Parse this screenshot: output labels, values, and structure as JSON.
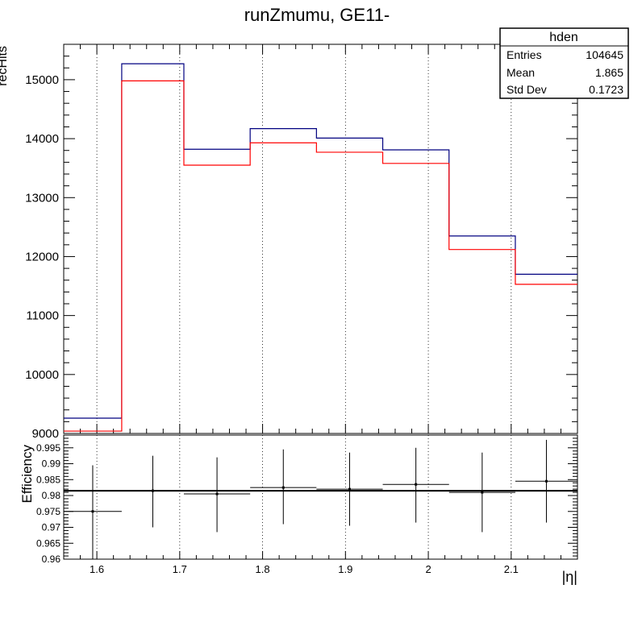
{
  "title": "runZmumu, GE11-",
  "chart_data": [
    {
      "type": "step",
      "ylabel": "recHits",
      "xlim": [
        1.56,
        2.18
      ],
      "ylim": [
        9000,
        15600
      ],
      "x_ticks": [
        1.6,
        1.7,
        1.8,
        1.9,
        2.0,
        2.1
      ],
      "y_ticks": [
        9000,
        10000,
        11000,
        12000,
        13000,
        14000,
        15000
      ],
      "y_tick_labels": [
        "9000",
        "10000",
        "11000",
        "12000",
        "13000",
        "14000",
        "15000"
      ],
      "grid_x": true,
      "bin_edges": [
        1.56,
        1.63,
        1.705,
        1.785,
        1.865,
        1.945,
        2.025,
        2.105,
        2.18
      ],
      "series": [
        {
          "color": "#000080",
          "values": [
            9260,
            15270,
            13820,
            14170,
            14010,
            13810,
            12350,
            11700
          ]
        },
        {
          "color": "#ff0000",
          "values": [
            9040,
            14980,
            13550,
            13930,
            13770,
            13580,
            12120,
            11530
          ]
        }
      ],
      "stats_box": {
        "title": "hden",
        "rows": [
          {
            "label": "Entries",
            "value": "104645"
          },
          {
            "label": "Mean",
            "value": "1.865"
          },
          {
            "label": "Std Dev",
            "value": "0.1723"
          }
        ]
      }
    },
    {
      "type": "scatter",
      "ylabel": "Efficiency",
      "xlabel": "|η|",
      "xlim": [
        1.56,
        2.18
      ],
      "ylim": [
        0.96,
        0.999
      ],
      "x_ticks": [
        1.6,
        1.7,
        1.8,
        1.9,
        2.0,
        2.1
      ],
      "x_tick_labels": [
        "1.6",
        "1.7",
        "1.8",
        "1.9",
        "2",
        "2.1"
      ],
      "y_ticks": [
        0.96,
        0.965,
        0.97,
        0.975,
        0.98,
        0.985,
        0.99,
        0.995
      ],
      "y_tick_labels": [
        "0.96",
        "0.965",
        "0.97",
        "0.975",
        "0.98",
        "0.985",
        "0.99",
        "0.995"
      ],
      "grid_x": true,
      "reference_line": 0.9815,
      "points": [
        {
          "x": 1.595,
          "y": 0.975,
          "xerr": 0.035,
          "yerr_low": 0.02,
          "yerr_high": 0.0145
        },
        {
          "x": 1.6675,
          "y": 0.9815,
          "xerr": 0.0375,
          "yerr_low": 0.0115,
          "yerr_high": 0.011
        },
        {
          "x": 1.745,
          "y": 0.9805,
          "xerr": 0.04,
          "yerr_low": 0.012,
          "yerr_high": 0.0115
        },
        {
          "x": 1.825,
          "y": 0.9825,
          "xerr": 0.04,
          "yerr_low": 0.0115,
          "yerr_high": 0.012
        },
        {
          "x": 1.905,
          "y": 0.982,
          "xerr": 0.04,
          "yerr_low": 0.0115,
          "yerr_high": 0.0115
        },
        {
          "x": 1.985,
          "y": 0.9835,
          "xerr": 0.04,
          "yerr_low": 0.012,
          "yerr_high": 0.0115
        },
        {
          "x": 2.065,
          "y": 0.981,
          "xerr": 0.04,
          "yerr_low": 0.0125,
          "yerr_high": 0.0125
        },
        {
          "x": 2.1425,
          "y": 0.9845,
          "xerr": 0.0375,
          "yerr_low": 0.013,
          "yerr_high": 0.013
        }
      ]
    }
  ]
}
